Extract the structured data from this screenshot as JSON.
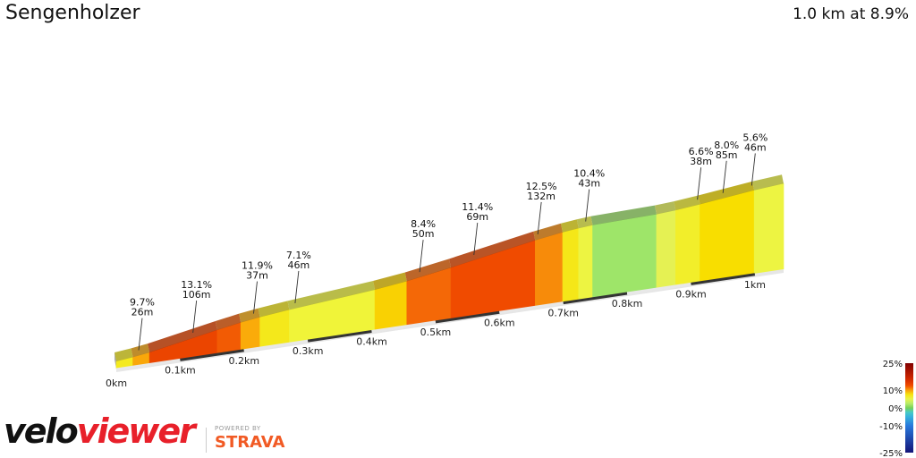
{
  "header": {
    "title": "Sengenholzer",
    "summary": "1.0 km at 8.9%"
  },
  "logo": {
    "part1": "velo",
    "part2": "viewer",
    "powered_by": "POWERED BY",
    "strava": "STRAVA"
  },
  "colors": {
    "brand_red": "#e8202a",
    "strava_orange": "#f15a24"
  },
  "chart_data": {
    "type": "area",
    "title": "Sengenholzer",
    "distance_ticks": [
      "0km",
      "0.1km",
      "0.2km",
      "0.3km",
      "0.4km",
      "0.5km",
      "0.6km",
      "0.7km",
      "0.8km",
      "0.9km",
      "1km"
    ],
    "annotations": [
      {
        "d": 0.035,
        "grade": "9.7%",
        "length": "26m"
      },
      {
        "d": 0.12,
        "grade": "13.1%",
        "length": "106m"
      },
      {
        "d": 0.215,
        "grade": "11.9%",
        "length": "37m"
      },
      {
        "d": 0.28,
        "grade": "7.1%",
        "length": "46m"
      },
      {
        "d": 0.475,
        "grade": "8.4%",
        "length": "50m"
      },
      {
        "d": 0.56,
        "grade": "11.4%",
        "length": "69m"
      },
      {
        "d": 0.66,
        "grade": "12.5%",
        "length": "132m"
      },
      {
        "d": 0.735,
        "grade": "10.4%",
        "length": "43m"
      },
      {
        "d": 0.91,
        "grade": "6.6%",
        "length": "38m"
      },
      {
        "d": 0.95,
        "grade": "8.0%",
        "length": "85m"
      },
      {
        "d": 0.995,
        "grade": "5.6%",
        "length": "46m"
      }
    ],
    "segments": [
      {
        "start": 0.0,
        "end": 0.026,
        "grade": 7.0
      },
      {
        "start": 0.026,
        "end": 0.052,
        "grade": 9.7
      },
      {
        "start": 0.052,
        "end": 0.158,
        "grade": 13.1
      },
      {
        "start": 0.158,
        "end": 0.195,
        "grade": 11.9
      },
      {
        "start": 0.195,
        "end": 0.225,
        "grade": 9.6
      },
      {
        "start": 0.225,
        "end": 0.271,
        "grade": 7.1
      },
      {
        "start": 0.271,
        "end": 0.405,
        "grade": 6.1
      },
      {
        "start": 0.405,
        "end": 0.455,
        "grade": 8.4
      },
      {
        "start": 0.455,
        "end": 0.524,
        "grade": 11.4
      },
      {
        "start": 0.524,
        "end": 0.656,
        "grade": 12.5
      },
      {
        "start": 0.656,
        "end": 0.699,
        "grade": 10.4
      },
      {
        "start": 0.699,
        "end": 0.724,
        "grade": 7.2
      },
      {
        "start": 0.724,
        "end": 0.746,
        "grade": 5.6
      },
      {
        "start": 0.746,
        "end": 0.846,
        "grade": 1.5
      },
      {
        "start": 0.846,
        "end": 0.876,
        "grade": 4.5
      },
      {
        "start": 0.876,
        "end": 0.914,
        "grade": 6.6
      },
      {
        "start": 0.914,
        "end": 0.999,
        "grade": 8.0
      },
      {
        "start": 0.999,
        "end": 1.045,
        "grade": 5.6
      }
    ],
    "legend": {
      "labels": [
        "25%",
        "10%",
        "0%",
        "-10%",
        "-25%"
      ],
      "values": [
        25,
        10,
        0,
        -10,
        -25
      ]
    }
  }
}
